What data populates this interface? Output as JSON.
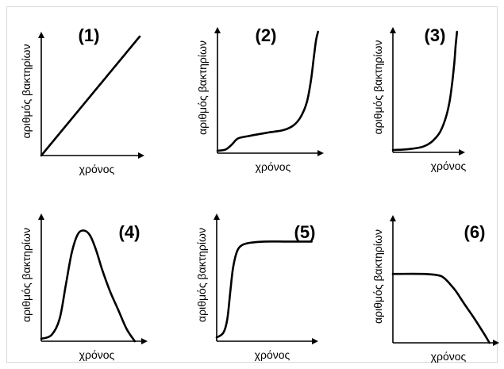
{
  "chart_data": [
    {
      "type": "line",
      "panel_label": "(1)",
      "xlabel": "χρόνος",
      "ylabel": "αριθμός βακτηρίων",
      "xlim": [
        0,
        1
      ],
      "ylim": [
        0,
        1
      ],
      "series": [
        {
          "x": [
            0,
            1
          ],
          "y": [
            0,
            1
          ]
        }
      ]
    },
    {
      "type": "line",
      "panel_label": "(2)",
      "xlabel": "χρόνος",
      "ylabel": "αριθμός βακτηρίων",
      "xlim": [
        0,
        1
      ],
      "ylim": [
        0,
        1
      ],
      "series": [
        {
          "x": [
            0,
            0.08,
            0.14,
            0.2,
            0.3,
            0.5,
            0.65,
            0.75,
            0.82,
            0.88,
            0.92,
            0.95,
            0.97,
            0.99
          ],
          "y": [
            0.02,
            0.03,
            0.07,
            0.12,
            0.14,
            0.17,
            0.19,
            0.23,
            0.3,
            0.42,
            0.6,
            0.8,
            0.93,
            1.0
          ]
        }
      ]
    },
    {
      "type": "line",
      "panel_label": "(3)",
      "xlabel": "χρόνος",
      "ylabel": "αριθμός βακτηρίων",
      "xlim": [
        0,
        1
      ],
      "ylim": [
        0,
        1
      ],
      "series": [
        {
          "x": [
            0,
            0.2,
            0.4,
            0.5,
            0.6,
            0.7,
            0.78,
            0.84,
            0.88,
            0.91,
            0.93,
            0.95
          ],
          "y": [
            0.02,
            0.025,
            0.04,
            0.06,
            0.1,
            0.17,
            0.28,
            0.42,
            0.58,
            0.74,
            0.88,
            1.0
          ]
        }
      ]
    },
    {
      "type": "line",
      "panel_label": "(4)",
      "xlabel": "χρόνος",
      "ylabel": "αριθμός βακτηρίων",
      "xlim": [
        0,
        1
      ],
      "ylim": [
        0,
        1
      ],
      "series": [
        {
          "x": [
            0,
            0.1,
            0.18,
            0.24,
            0.3,
            0.36,
            0.42,
            0.48,
            0.54,
            0.6,
            0.68,
            0.76,
            0.84,
            0.92
          ],
          "y": [
            0.02,
            0.05,
            0.18,
            0.45,
            0.72,
            0.87,
            0.9,
            0.86,
            0.74,
            0.58,
            0.4,
            0.25,
            0.1,
            0.0
          ]
        }
      ]
    },
    {
      "type": "line",
      "panel_label": "(5)",
      "xlabel": "χρόνος",
      "ylabel": "αριθμός βακτηρίων",
      "xlim": [
        0,
        1
      ],
      "ylim": [
        0,
        1
      ],
      "series": [
        {
          "x": [
            0,
            0.07,
            0.11,
            0.14,
            0.17,
            0.21,
            0.26,
            0.34,
            0.5,
            0.7,
            0.9,
            0.98
          ],
          "y": [
            0.03,
            0.07,
            0.18,
            0.4,
            0.6,
            0.73,
            0.78,
            0.8,
            0.81,
            0.81,
            0.81,
            0.81
          ]
        }
      ]
    },
    {
      "type": "line",
      "panel_label": "(6)",
      "xlabel": "χρόνος",
      "ylabel": "αριθμός βακτηρίων",
      "xlim": [
        0,
        1
      ],
      "ylim": [
        0,
        1
      ],
      "series": [
        {
          "x": [
            0,
            0.3,
            0.44,
            0.5,
            0.56,
            0.62,
            0.7,
            0.8,
            0.9,
            0.95
          ],
          "y": [
            0.56,
            0.56,
            0.55,
            0.53,
            0.48,
            0.42,
            0.32,
            0.2,
            0.07,
            0.0
          ]
        }
      ]
    }
  ]
}
